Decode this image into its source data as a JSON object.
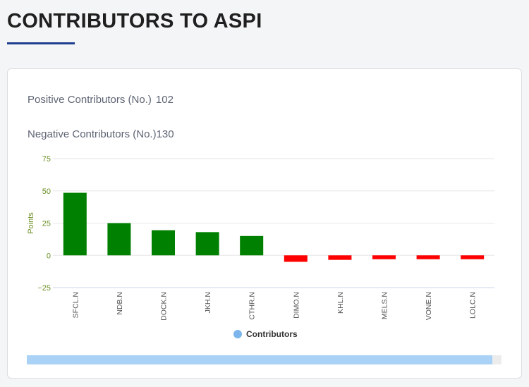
{
  "page": {
    "title": "CONTRIBUTORS TO ASPI"
  },
  "stats": {
    "positive_label": "Positive Contributors (No.)",
    "positive_value": "102",
    "negative_label": "Negative Contributors (No.)",
    "negative_value": "130"
  },
  "chart_data": {
    "type": "bar",
    "title": "",
    "xlabel": "",
    "ylabel": "Points",
    "ylim": [
      -25,
      75
    ],
    "yticks": [
      75,
      50,
      25,
      0,
      -25
    ],
    "ytick_labels": [
      "75",
      "50",
      "25",
      "0",
      "−25"
    ],
    "categories": [
      "SFCL.N",
      "NDB.N",
      "DOCK.N",
      "JKH.N",
      "CTHR.N",
      "DIMO.N",
      "KHL.N",
      "MELS.N",
      "VONE.N",
      "LOLC.N"
    ],
    "series": [
      {
        "name": "Contributors",
        "values": [
          48.5,
          25,
          19.5,
          18,
          15,
          -5,
          -3.5,
          -3,
          -3,
          -3
        ]
      }
    ],
    "legend": {
      "label": "Contributors",
      "position": "bottom-center"
    },
    "colors": {
      "positive": "#008000",
      "negative": "#ff0000",
      "legend_marker": "#7cb5ec",
      "axis_text": "#6b8e23"
    },
    "scrollbar_fill": 0.98
  }
}
